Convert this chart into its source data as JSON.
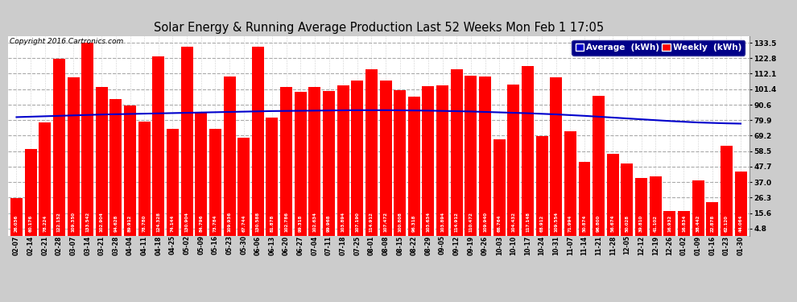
{
  "title": "Solar Energy & Running Average Production Last 52 Weeks Mon Feb 1 17:05",
  "copyright": "Copyright 2016 Cartronics.com",
  "bar_color": "#ff0000",
  "avg_line_color": "#0000cc",
  "background_color": "#cccccc",
  "plot_bg_color": "#ffffff",
  "grid_color": "#aaaaaa",
  "legend_bg_color": "#000088",
  "ylabel_right_values": [
    4.8,
    15.6,
    26.3,
    37.0,
    47.7,
    58.5,
    69.2,
    79.9,
    90.6,
    101.4,
    112.1,
    122.8,
    133.5
  ],
  "weekly_values": [
    26.036,
    60.176,
    78.224,
    122.152,
    109.35,
    133.542,
    102.904,
    94.628,
    89.912,
    78.78,
    124.328,
    74.144,
    130.904,
    84.796,
    73.784,
    109.936,
    67.744,
    130.588,
    81.878,
    102.786,
    99.318,
    102.634,
    99.968,
    103.894,
    107.19,
    114.912,
    107.472,
    100.808,
    96.318,
    103.634,
    103.894,
    114.912,
    110.472,
    109.94,
    66.764,
    104.432,
    117.148,
    68.912,
    109.554,
    71.994,
    50.874,
    96.8,
    56.674,
    50.028,
    39.81,
    41.102,
    16.932,
    16.834,
    38.442,
    22.878,
    62.12,
    44.064
  ],
  "x_labels": [
    "02-07",
    "02-14",
    "02-21",
    "02-28",
    "03-07",
    "03-14",
    "03-21",
    "03-28",
    "04-04",
    "04-11",
    "04-18",
    "04-25",
    "05-02",
    "05-09",
    "05-16",
    "05-23",
    "05-30",
    "06-06",
    "06-13",
    "06-20",
    "06-27",
    "07-04",
    "07-11",
    "07-18",
    "07-25",
    "08-01",
    "08-08",
    "08-15",
    "08-22",
    "08-29",
    "09-05",
    "09-12",
    "09-19",
    "09-26",
    "10-03",
    "10-10",
    "10-17",
    "10-24",
    "10-31",
    "11-07",
    "11-14",
    "11-21",
    "11-28",
    "12-05",
    "12-12",
    "12-19",
    "12-26",
    "01-02",
    "01-09",
    "01-16",
    "01-23",
    "01-30"
  ],
  "avg_values": [
    82.0,
    82.3,
    82.6,
    82.9,
    83.2,
    83.5,
    83.8,
    84.0,
    84.2,
    84.4,
    84.6,
    84.8,
    85.0,
    85.2,
    85.4,
    85.6,
    85.8,
    86.0,
    86.2,
    86.3,
    86.4,
    86.5,
    86.6,
    86.7,
    86.8,
    86.8,
    86.8,
    86.7,
    86.6,
    86.5,
    86.3,
    86.1,
    85.9,
    85.6,
    85.3,
    85.0,
    84.7,
    84.3,
    83.9,
    83.4,
    82.9,
    82.3,
    81.7,
    81.1,
    80.5,
    79.9,
    79.3,
    78.8,
    78.3,
    78.0,
    77.7,
    77.5
  ],
  "ylim": [
    0,
    138
  ],
  "bar_width": 0.85,
  "label_fontsize": 4.0,
  "tick_fontsize": 6.5,
  "xtick_fontsize": 5.5,
  "title_fontsize": 10.5,
  "copyright_fontsize": 6.5,
  "legend_fontsize": 7.5
}
